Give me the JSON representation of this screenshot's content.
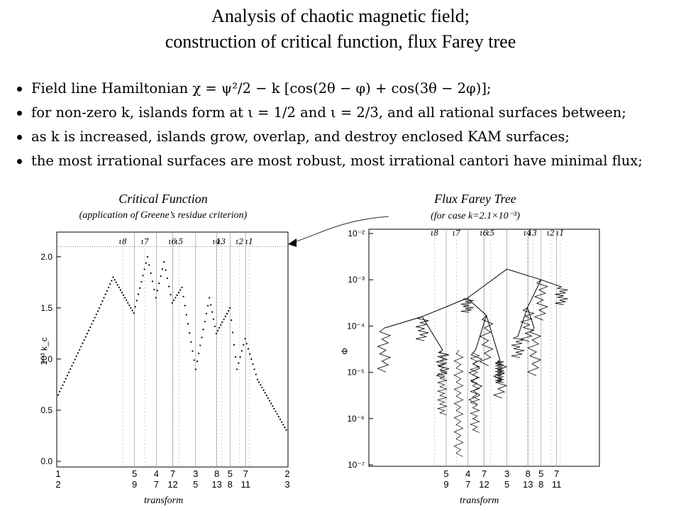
{
  "title_line1": "Analysis of chaotic magnetic field;",
  "title_line2": "construction of critical function, flux Farey tree",
  "bullets": [
    "Field line Hamiltonian χ = ψ²/2 − k [cos(2θ − φ) + cos(3θ − 2φ)];",
    "for non-zero k, islands form at ι = 1/2 and ι = 2/3, and all rational surfaces between;",
    "as k is increased, islands grow, overlap, and destroy enclosed KAM surfaces;",
    "the most irrational surfaces are most robust, most irrational cantori have minimal flux;"
  ],
  "left_panel": {
    "caption": "Critical Function",
    "subcaption": "(application of Greene’s residue criterion)",
    "ylabel": "10³ k_c",
    "yticks": [
      "0.0",
      "0.5",
      "1.0",
      "1.5",
      "2.0"
    ],
    "xaxis_label": "transform"
  },
  "right_panel": {
    "caption": "Flux Farey Tree",
    "subcaption": "(for case k=2.1×10⁻³)",
    "ylabel": "Φ",
    "yticks": [
      "10⁻⁷",
      "10⁻⁶",
      "10⁻⁵",
      "10⁻⁴",
      "10⁻³",
      "10⁻²"
    ],
    "xaxis_label": "transform"
  },
  "fractions": [
    {
      "num": "1",
      "den": "2"
    },
    {
      "num": "5",
      "den": "9"
    },
    {
      "num": "4",
      "den": "7"
    },
    {
      "num": "7",
      "den": "12"
    },
    {
      "num": "3",
      "den": "5"
    },
    {
      "num": "8",
      "den": "13"
    },
    {
      "num": "5",
      "den": "8"
    },
    {
      "num": "7",
      "den": "11"
    },
    {
      "num": "2",
      "den": "3"
    }
  ],
  "iota_labels": [
    "ι8",
    "ι7",
    "ι6",
    "ι5",
    "ι4",
    "ι3",
    "ι2",
    "ι1"
  ],
  "chart_data": [
    {
      "type": "scatter",
      "title": "Critical Function",
      "ylabel": "10³ k_c",
      "ylim": [
        0,
        2.2
      ],
      "x_ticks": [
        "1/2",
        "5/9",
        "4/7",
        "7/12",
        "3/5",
        "8/13",
        "5/8",
        "7/11",
        "2/3"
      ],
      "reference_line_y": 2.1,
      "envelope": [
        {
          "x": 0.5,
          "y": 0.65
        },
        {
          "x": 0.53,
          "y": 1.5
        },
        {
          "x": 0.54,
          "y": 1.8
        },
        {
          "x": 0.555,
          "y": 1.45
        },
        {
          "x": 0.565,
          "y": 2.0
        },
        {
          "x": 0.571,
          "y": 1.6
        },
        {
          "x": 0.577,
          "y": 1.95
        },
        {
          "x": 0.583,
          "y": 1.55
        },
        {
          "x": 0.59,
          "y": 1.7
        },
        {
          "x": 0.6,
          "y": 0.9
        },
        {
          "x": 0.61,
          "y": 1.6
        },
        {
          "x": 0.615,
          "y": 1.25
        },
        {
          "x": 0.625,
          "y": 1.5
        },
        {
          "x": 0.63,
          "y": 0.9
        },
        {
          "x": 0.636,
          "y": 1.2
        },
        {
          "x": 0.645,
          "y": 0.8
        },
        {
          "x": 0.667,
          "y": 0.28
        }
      ]
    },
    {
      "type": "line",
      "title": "Flux Farey Tree",
      "ylabel": "Φ",
      "yscale": "log",
      "ylim": [
        1e-07,
        0.01
      ],
      "x_ticks": [
        "5/9",
        "4/7",
        "7/12",
        "3/5",
        "8/13",
        "5/8",
        "7/11"
      ],
      "tree_edges": [
        {
          "from": [
            0.6,
            0.0017
          ],
          "to": [
            0.571,
            0.0004
          ]
        },
        {
          "from": [
            0.6,
            0.0017
          ],
          "to": [
            0.625,
            0.001
          ]
        },
        {
          "from": [
            0.571,
            0.0004
          ],
          "to": [
            0.538,
            0.00016
          ]
        },
        {
          "from": [
            0.571,
            0.0004
          ],
          "to": [
            0.585,
            0.00017
          ]
        },
        {
          "from": [
            0.625,
            0.001
          ],
          "to": [
            0.615,
            0.00025
          ]
        },
        {
          "from": [
            0.625,
            0.001
          ],
          "to": [
            0.64,
            0.0007
          ]
        },
        {
          "from": [
            0.538,
            0.00016
          ],
          "to": [
            0.51,
            9e-05
          ]
        },
        {
          "from": [
            0.538,
            0.00016
          ],
          "to": [
            0.553,
            3e-05
          ]
        },
        {
          "from": [
            0.585,
            0.00017
          ],
          "to": [
            0.577,
            3e-05
          ]
        },
        {
          "from": [
            0.585,
            0.00017
          ],
          "to": [
            0.595,
            1.8e-05
          ]
        },
        {
          "from": [
            0.615,
            0.00025
          ],
          "to": [
            0.608,
            6e-05
          ]
        },
        {
          "from": [
            0.615,
            0.00025
          ],
          "to": [
            0.62,
            9e-05
          ]
        }
      ]
    }
  ]
}
